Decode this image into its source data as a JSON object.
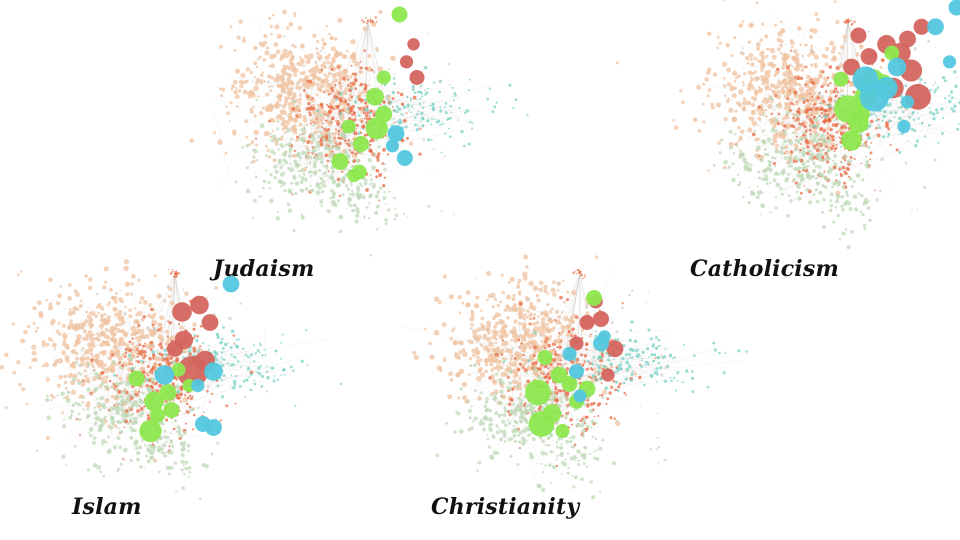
{
  "panels": [
    {
      "label": "Judaism",
      "highlight": {
        "green": [
          [
            0.05,
            0.63,
            0.9
          ],
          [
            0.09,
            0.55,
            0.6
          ],
          [
            0.04,
            0.45,
            0.65
          ],
          [
            -0.16,
            0.82,
            0.6
          ],
          [
            -0.04,
            0.72,
            0.55
          ],
          [
            -0.05,
            0.88,
            0.5
          ],
          [
            -0.11,
            0.62,
            0.45
          ],
          [
            0.18,
            -0.02,
            0.55
          ],
          [
            0.09,
            0.34,
            0.45
          ],
          [
            -0.08,
            0.9,
            0.4
          ]
        ],
        "blue": [
          [
            0.16,
            0.66,
            0.6
          ],
          [
            0.21,
            0.8,
            0.55
          ],
          [
            0.14,
            0.73,
            0.4
          ]
        ],
        "red": [
          [
            0.28,
            0.34,
            0.5
          ],
          [
            0.22,
            0.25,
            0.4
          ],
          [
            0.26,
            0.15,
            0.35
          ]
        ]
      }
    },
    {
      "label": "Catholicism",
      "highlight": {
        "green": [
          [
            0.0,
            0.52,
            1.2
          ],
          [
            0.06,
            0.6,
            0.8
          ],
          [
            0.1,
            0.45,
            0.9
          ],
          [
            0.02,
            0.7,
            0.8
          ],
          [
            0.08,
            0.55,
            0.55
          ],
          [
            0.18,
            0.4,
            0.55
          ],
          [
            0.25,
            0.2,
            0.5
          ],
          [
            0.14,
            0.36,
            1.0
          ],
          [
            0.2,
            0.38,
            0.8
          ],
          [
            -0.04,
            0.35,
            0.5
          ]
        ],
        "blue": [
          [
            0.1,
            0.35,
            1.1
          ],
          [
            0.15,
            0.45,
            1.3
          ],
          [
            0.22,
            0.4,
            0.9
          ],
          [
            0.28,
            0.28,
            0.7
          ],
          [
            0.5,
            0.05,
            0.6
          ],
          [
            0.62,
            -0.06,
            0.55
          ],
          [
            0.68,
            -0.14,
            0.45
          ],
          [
            0.58,
            0.25,
            0.4
          ],
          [
            0.72,
            0.1,
            0.4
          ],
          [
            0.32,
            0.62,
            0.4
          ],
          [
            0.34,
            0.48,
            0.4
          ]
        ],
        "red": [
          [
            0.4,
            0.45,
            1.1
          ],
          [
            0.36,
            0.3,
            0.9
          ],
          [
            0.3,
            0.2,
            0.8
          ],
          [
            0.22,
            0.15,
            0.7
          ],
          [
            0.12,
            0.22,
            0.6
          ],
          [
            0.02,
            0.28,
            0.6
          ],
          [
            0.26,
            0.4,
            0.8
          ],
          [
            0.42,
            0.05,
            0.55
          ],
          [
            0.06,
            0.1,
            0.55
          ],
          [
            0.34,
            0.12,
            0.6
          ]
        ]
      }
    },
    {
      "label": "Islam",
      "highlight": {
        "green": [
          [
            -0.14,
            0.92,
            0.9
          ],
          [
            -0.12,
            0.75,
            0.75
          ],
          [
            -0.04,
            0.7,
            0.6
          ],
          [
            -0.02,
            0.8,
            0.55
          ],
          [
            -0.22,
            0.62,
            0.55
          ],
          [
            -0.1,
            0.83,
            0.5
          ],
          [
            0.02,
            0.57,
            0.45
          ],
          [
            0.08,
            0.66,
            0.4
          ]
        ],
        "blue": [
          [
            -0.06,
            0.6,
            0.75
          ],
          [
            0.22,
            0.58,
            0.7
          ],
          [
            0.16,
            0.88,
            0.55
          ],
          [
            0.32,
            0.08,
            0.6
          ],
          [
            0.13,
            0.66,
            0.4
          ],
          [
            0.22,
            0.9,
            0.6
          ]
        ],
        "red": [
          [
            0.1,
            0.58,
            1.4
          ],
          [
            0.17,
            0.52,
            0.8
          ],
          [
            0.14,
            0.2,
            0.7
          ],
          [
            0.04,
            0.24,
            0.75
          ],
          [
            0.05,
            0.4,
            0.7
          ],
          [
            0.2,
            0.3,
            0.6
          ],
          [
            0.0,
            0.45,
            0.55
          ]
        ]
      }
    },
    {
      "label": "Christianity",
      "highlight": {
        "green": [
          [
            -0.24,
            0.7,
            1.1
          ],
          [
            -0.22,
            0.88,
            1.1
          ],
          [
            -0.16,
            0.82,
            0.7
          ],
          [
            -0.12,
            0.6,
            0.6
          ],
          [
            -0.06,
            0.65,
            0.55
          ],
          [
            -0.02,
            0.75,
            0.5
          ],
          [
            0.04,
            0.68,
            0.6
          ],
          [
            0.08,
            0.16,
            0.55
          ],
          [
            -0.1,
            0.92,
            0.45
          ],
          [
            -0.2,
            0.5,
            0.5
          ]
        ],
        "blue": [
          [
            -0.02,
            0.58,
            0.5
          ],
          [
            0.12,
            0.42,
            0.55
          ],
          [
            -0.06,
            0.48,
            0.45
          ],
          [
            0.0,
            0.72,
            0.4
          ],
          [
            0.14,
            0.38,
            0.35
          ]
        ],
        "red": [
          [
            0.2,
            0.45,
            0.6
          ],
          [
            0.12,
            0.28,
            0.55
          ],
          [
            0.04,
            0.3,
            0.5
          ],
          [
            0.16,
            0.6,
            0.4
          ],
          [
            -0.02,
            0.42,
            0.45
          ],
          [
            0.09,
            0.18,
            0.45
          ]
        ]
      }
    }
  ],
  "palette": {
    "peach": "#efc3a2",
    "orange": "#e86a44",
    "pale_green": "#bfd9b8",
    "teal": "#78d2c5",
    "edge": "#c9c6bf",
    "highlight_green": "#8de84f",
    "highlight_blue": "#53c7de",
    "highlight_red": "#d4655e"
  }
}
